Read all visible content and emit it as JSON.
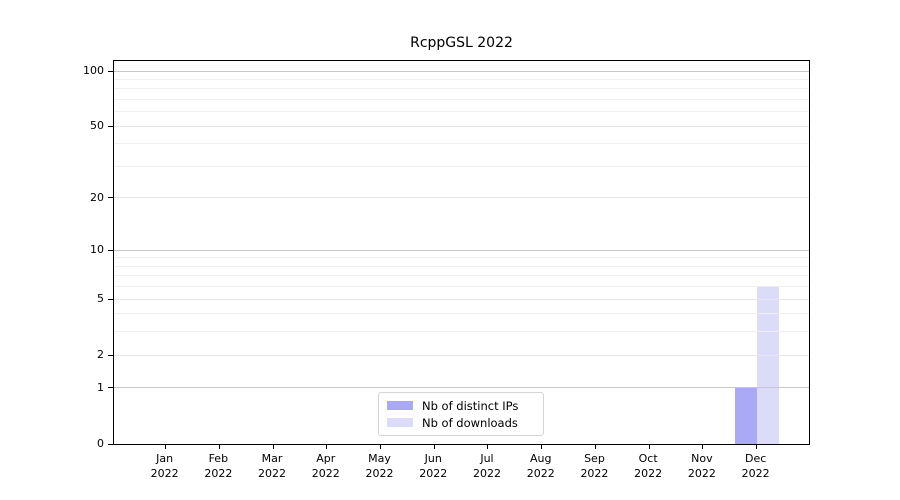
{
  "chart": {
    "title": "RcppGSL 2022",
    "legend": {
      "items": [
        {
          "label": "Nb of distinct IPs",
          "color": "#a9a9f5"
        },
        {
          "label": "Nb of downloads",
          "color": "#dcdcf8"
        }
      ]
    }
  },
  "chart_data": {
    "type": "bar",
    "title": "RcppGSL 2022",
    "categories": [
      "Jan 2022",
      "Feb 2022",
      "Mar 2022",
      "Apr 2022",
      "May 2022",
      "Jun 2022",
      "Jul 2022",
      "Aug 2022",
      "Sep 2022",
      "Oct 2022",
      "Nov 2022",
      "Dec 2022"
    ],
    "series": [
      {
        "name": "Nb of distinct IPs",
        "color": "#a9a9f5",
        "values": [
          0,
          0,
          0,
          0,
          0,
          0,
          0,
          0,
          0,
          0,
          0,
          1
        ]
      },
      {
        "name": "Nb of downloads",
        "color": "#dcdcf8",
        "values": [
          0,
          0,
          0,
          0,
          0,
          0,
          0,
          0,
          0,
          0,
          0,
          6
        ]
      }
    ],
    "xlabel": "",
    "ylabel": "",
    "yscale": "log1p",
    "ylim": [
      0,
      114
    ],
    "y_major_ticks": [
      0,
      1,
      2,
      5,
      10,
      20,
      50,
      100
    ],
    "y_minor_ticks": [
      3,
      4,
      6,
      7,
      8,
      9,
      30,
      40,
      60,
      70,
      80,
      90
    ],
    "y_decade_gridlines": [
      1,
      10,
      100
    ],
    "grid": true,
    "legend_position": "inside lower-center",
    "colors": {
      "decade_grid": "#c8c8c8",
      "major_grid": "#e6e6e6",
      "minor_grid": "#efefef",
      "axis": "#000000",
      "text": "#000000"
    }
  }
}
